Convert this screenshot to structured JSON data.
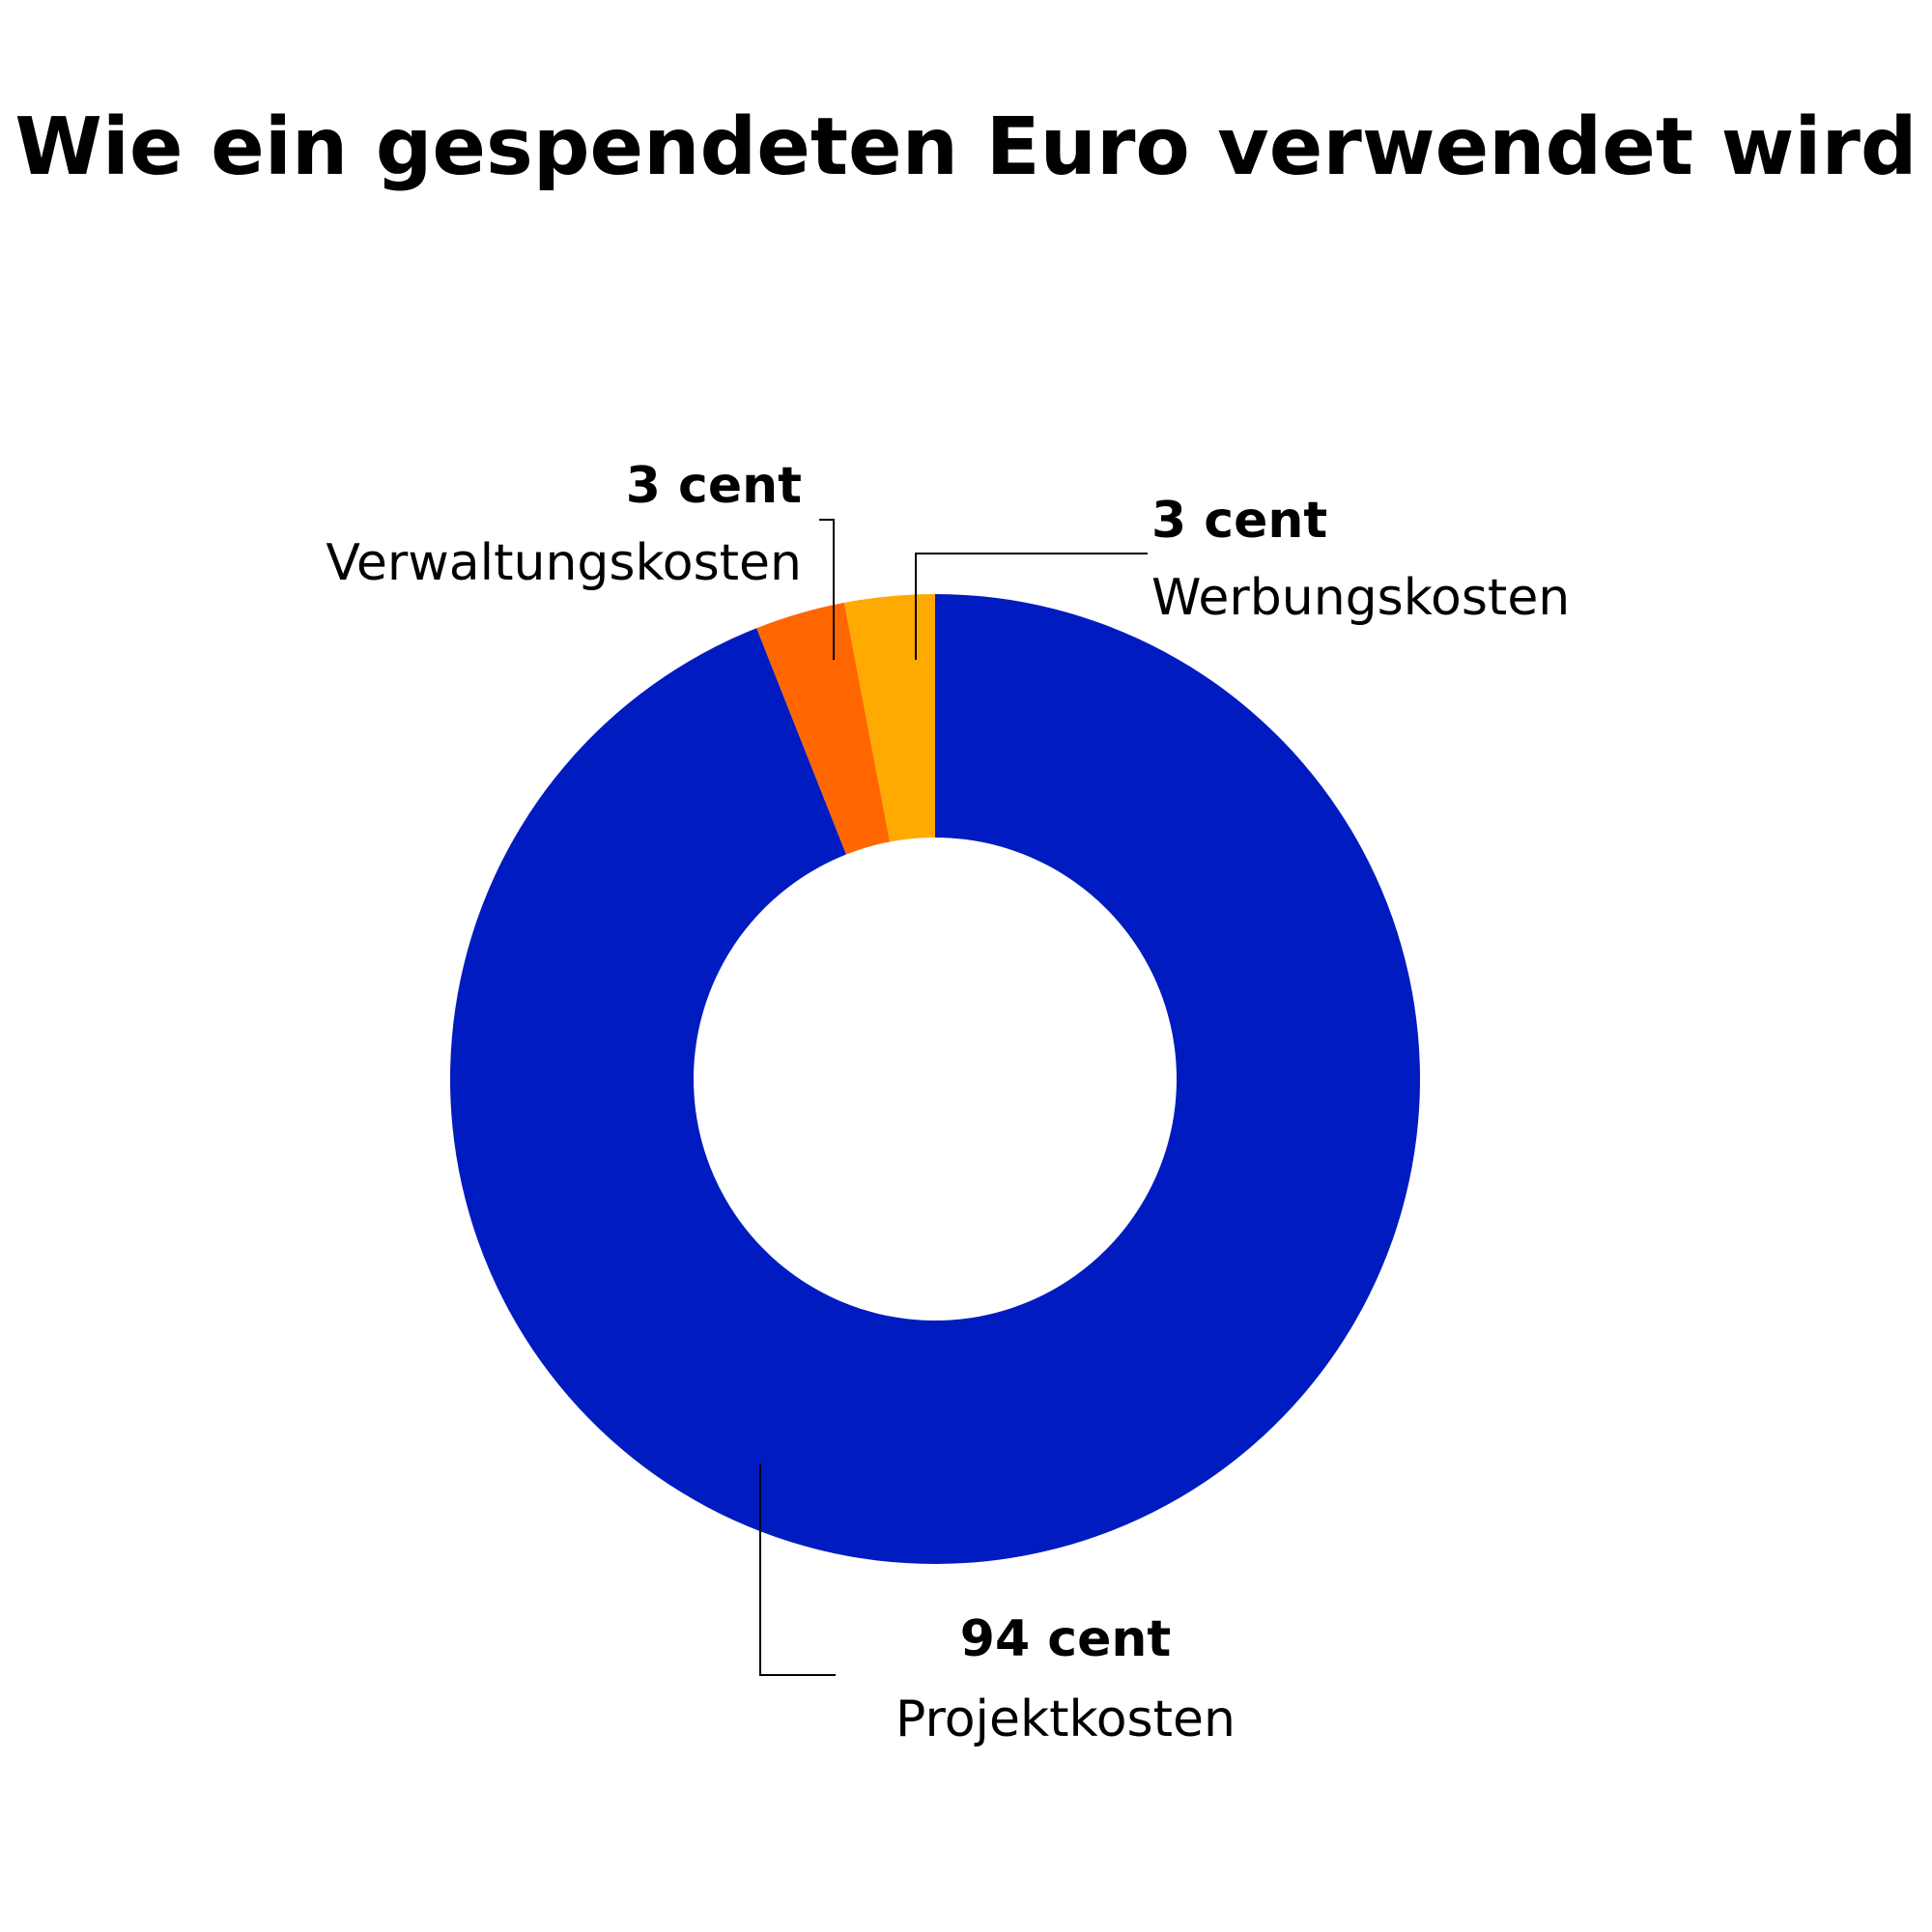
{
  "chart_data": {
    "type": "pie",
    "style": "donut",
    "title": "Wie ein gespendeten Euro verwendet wird",
    "unit": "cent",
    "slices": [
      {
        "label": "Projektkosten",
        "value": 94,
        "value_label": "94 cent",
        "color": "#001BC0"
      },
      {
        "label": "Verwaltungskosten",
        "value": 3,
        "value_label": "3 cent",
        "color": "#FF6600"
      },
      {
        "label": "Werbungskosten",
        "value": 3,
        "value_label": "3 cent",
        "color": "#FFAA00"
      }
    ],
    "legend": "none",
    "labels": "callouts"
  }
}
